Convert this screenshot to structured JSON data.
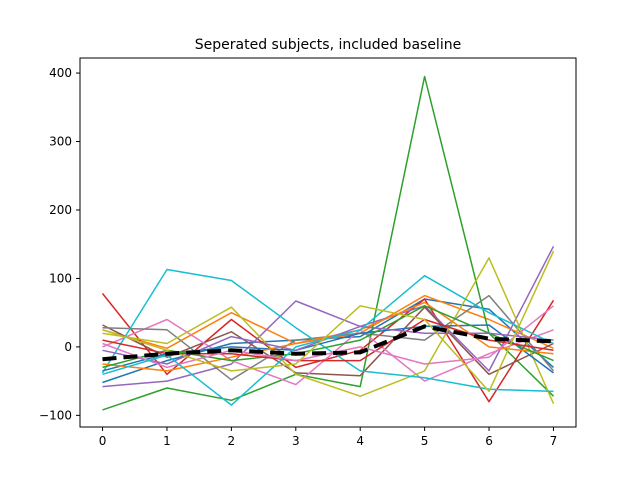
{
  "chart_data": {
    "type": "line",
    "title": "Seperated subjects, included baseline",
    "xlabel": "",
    "ylabel": "",
    "x": [
      0,
      1,
      2,
      3,
      4,
      5,
      6,
      7
    ],
    "xlim": [
      -0.35,
      7.35
    ],
    "ylim": [
      -117,
      422
    ],
    "xticks": [
      0,
      1,
      2,
      3,
      4,
      5,
      6,
      7
    ],
    "yticks": [
      -100,
      0,
      100,
      200,
      300,
      400
    ],
    "grid": false,
    "legend": false,
    "series": [
      {
        "color": "#1f77b4",
        "values": [
          -52,
          -20,
          5,
          10,
          15,
          70,
          55,
          -30
        ]
      },
      {
        "color": "#ff7f0e",
        "values": [
          25,
          -2,
          50,
          5,
          20,
          75,
          40,
          -2
        ]
      },
      {
        "color": "#2ca02c",
        "values": [
          -92,
          -60,
          -78,
          -40,
          -58,
          395,
          20,
          -72
        ]
      },
      {
        "color": "#d62728",
        "values": [
          78,
          -40,
          40,
          -30,
          -5,
          70,
          -80,
          68
        ]
      },
      {
        "color": "#9467bd",
        "values": [
          -58,
          -50,
          -25,
          67,
          30,
          60,
          -35,
          147
        ]
      },
      {
        "color": "#8c564b",
        "values": [
          32,
          -15,
          22,
          -38,
          -42,
          58,
          -40,
          5
        ]
      },
      {
        "color": "#e377c2",
        "values": [
          0,
          40,
          -20,
          -55,
          25,
          -50,
          -10,
          25
        ]
      },
      {
        "color": "#7f7f7f",
        "values": [
          28,
          25,
          -48,
          10,
          20,
          10,
          75,
          -35
        ]
      },
      {
        "color": "#bcbd22",
        "values": [
          20,
          5,
          58,
          -40,
          -72,
          -35,
          130,
          -83
        ]
      },
      {
        "color": "#17becf",
        "values": [
          -38,
          113,
          97,
          28,
          -35,
          -45,
          -62,
          -65
        ]
      },
      {
        "color": "#1f77b4",
        "values": [
          -35,
          -10,
          0,
          -5,
          20,
          30,
          32,
          -38
        ]
      },
      {
        "color": "#ff7f0e",
        "values": [
          -25,
          -35,
          -15,
          5,
          25,
          65,
          0,
          -10
        ]
      },
      {
        "color": "#2ca02c",
        "values": [
          -30,
          -5,
          -20,
          -10,
          10,
          60,
          20,
          -20
        ]
      },
      {
        "color": "#d62728",
        "values": [
          10,
          -10,
          -10,
          -20,
          -20,
          40,
          10,
          -5
        ]
      },
      {
        "color": "#9467bd",
        "values": [
          -5,
          -25,
          15,
          -5,
          30,
          20,
          20,
          10
        ]
      },
      {
        "color": "#e377c2",
        "values": [
          5,
          -30,
          -5,
          -20,
          0,
          -25,
          -15,
          60
        ]
      },
      {
        "color": "#17becf",
        "values": [
          -40,
          -12,
          -85,
          0,
          25,
          104,
          50,
          5
        ]
      },
      {
        "color": "#bcbd22",
        "values": [
          25,
          -5,
          -35,
          -25,
          60,
          40,
          -65,
          140
        ]
      },
      {
        "color": "#000000",
        "dashed": true,
        "values": [
          -18,
          -10,
          -5,
          -10,
          -8,
          30,
          12,
          8
        ]
      }
    ]
  }
}
